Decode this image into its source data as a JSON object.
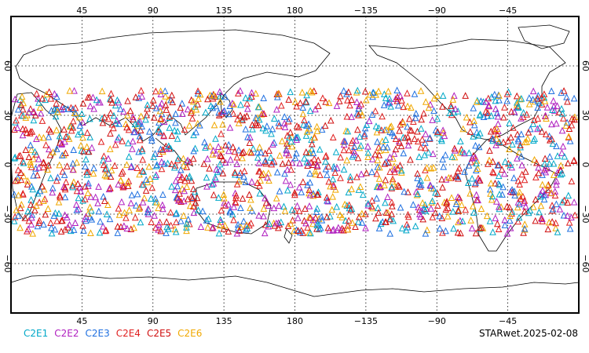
{
  "map": {
    "projection": "equirectangular",
    "center_longitude": 180,
    "latitude_range": [
      -90,
      90
    ],
    "marker": "triangle",
    "grid": "dotted",
    "x_tick_labels": [
      "45",
      "90",
      "135",
      "180",
      "−135",
      "−90",
      "−45"
    ],
    "x_tick_longitudes": [
      45,
      90,
      135,
      180,
      -135,
      -90,
      -45
    ],
    "y_tick_labels": [
      "60",
      "30",
      "0",
      "−30",
      "−60"
    ],
    "y_tick_latitudes": [
      60,
      30,
      0,
      -30,
      -60
    ],
    "observation_band_latitude": [
      -42,
      45
    ]
  },
  "legend": [
    {
      "label": "C2E1",
      "color": "#00a8c8"
    },
    {
      "label": "C2E2",
      "color": "#b020c0"
    },
    {
      "label": "C2E3",
      "color": "#2070e0"
    },
    {
      "label": "C2E4",
      "color": "#e02020"
    },
    {
      "label": "C2E5",
      "color": "#d01010"
    },
    {
      "label": "C2E6",
      "color": "#f0a800"
    }
  ],
  "caption": "STARwet.2025-02-08"
}
